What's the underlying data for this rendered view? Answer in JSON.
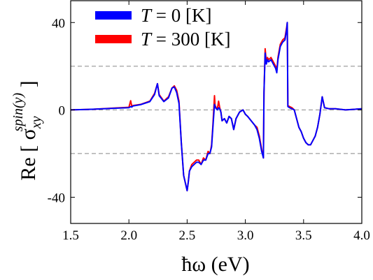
{
  "chart_data": {
    "type": "line",
    "xlabel": "ħω (eV)",
    "ylabel_base": "Re [ σ",
    "ylabel_sup": "spin(y)",
    "ylabel_sub": "xy",
    "ylabel_close": " ]",
    "xlim": [
      1.5,
      4.0
    ],
    "ylim": [
      -52,
      50
    ],
    "xticks": [
      1.5,
      2.0,
      2.5,
      3.0,
      3.5,
      4.0
    ],
    "xtick_labels": [
      "1.5",
      "2.0",
      "2.5",
      "3.0",
      "3.5",
      "4.0"
    ],
    "yticks": [
      -40,
      0,
      40
    ],
    "ytick_labels": [
      "-40",
      "0",
      "40"
    ],
    "reference_lines": [
      20,
      0,
      -20
    ],
    "legend_position": "top-left",
    "series": [
      {
        "name_var": "T",
        "name_rest": " = 300 [K]",
        "color": "#ff0000",
        "x": [
          1.5,
          1.7,
          1.9,
          2.0,
          2.015,
          2.025,
          2.035,
          2.1,
          2.18,
          2.22,
          2.245,
          2.26,
          2.3,
          2.34,
          2.37,
          2.39,
          2.41,
          2.43,
          2.45,
          2.47,
          2.5,
          2.51,
          2.52,
          2.54,
          2.56,
          2.58,
          2.6,
          2.62,
          2.64,
          2.66,
          2.68,
          2.695,
          2.7,
          2.71,
          2.72,
          2.735,
          2.74,
          2.75,
          2.76,
          2.77,
          2.78,
          2.79,
          2.8,
          2.82,
          2.84,
          2.86,
          2.88,
          2.9,
          2.92,
          2.95,
          2.98,
          3.0,
          3.02,
          3.05,
          3.08,
          3.1,
          3.12,
          3.14,
          3.155,
          3.16,
          3.17,
          3.18,
          3.19,
          3.2,
          3.22,
          3.24,
          3.26,
          3.27,
          3.28,
          3.3,
          3.32,
          3.34,
          3.355,
          3.36,
          3.365,
          3.38,
          3.4,
          3.42,
          3.44,
          3.46,
          3.48,
          3.5,
          3.52,
          3.54,
          3.56,
          3.58,
          3.6,
          3.62,
          3.64,
          3.66,
          3.68,
          3.72,
          3.78,
          3.86,
          4.0
        ],
        "y": [
          0,
          0.3,
          0.9,
          1.2,
          4.2,
          1.5,
          2,
          2.5,
          4,
          7.5,
          12,
          7,
          4,
          6,
          10,
          11,
          9,
          4,
          -15,
          -30,
          -37,
          -33,
          -28,
          -25,
          -24,
          -23,
          -23,
          -25,
          -22,
          -23,
          -19,
          -20,
          -19,
          -16,
          -8,
          6.5,
          2,
          1,
          0.5,
          4,
          1,
          -1,
          -5,
          -4,
          -6,
          -3,
          -4,
          -9,
          -4,
          -1,
          0,
          -2,
          -3,
          -5,
          -7,
          -8,
          -12,
          -18,
          -22,
          8,
          28,
          22,
          24,
          23,
          24,
          22,
          20,
          18,
          24,
          30,
          32,
          33,
          38,
          40,
          2,
          1.5,
          1,
          0,
          -4,
          -8,
          -10,
          -13,
          -15,
          -16,
          -16,
          -14,
          -12,
          -8,
          -2,
          6,
          1,
          0.5,
          0.5,
          0,
          0.5
        ]
      },
      {
        "name_var": "T",
        "name_rest": " = 0 [K]",
        "color": "#0000ff",
        "x": [
          1.5,
          1.7,
          1.9,
          2.0,
          2.015,
          2.025,
          2.035,
          2.1,
          2.18,
          2.22,
          2.245,
          2.26,
          2.3,
          2.34,
          2.37,
          2.39,
          2.41,
          2.43,
          2.45,
          2.47,
          2.5,
          2.51,
          2.52,
          2.54,
          2.56,
          2.58,
          2.6,
          2.62,
          2.64,
          2.66,
          2.68,
          2.695,
          2.7,
          2.71,
          2.72,
          2.735,
          2.74,
          2.75,
          2.76,
          2.77,
          2.78,
          2.79,
          2.8,
          2.82,
          2.84,
          2.86,
          2.88,
          2.9,
          2.92,
          2.95,
          2.98,
          3.0,
          3.02,
          3.05,
          3.08,
          3.1,
          3.12,
          3.14,
          3.155,
          3.16,
          3.17,
          3.18,
          3.19,
          3.2,
          3.22,
          3.24,
          3.26,
          3.27,
          3.28,
          3.3,
          3.32,
          3.34,
          3.355,
          3.36,
          3.365,
          3.38,
          3.4,
          3.42,
          3.44,
          3.46,
          3.48,
          3.5,
          3.52,
          3.54,
          3.56,
          3.58,
          3.6,
          3.62,
          3.64,
          3.66,
          3.68,
          3.72,
          3.78,
          3.86,
          4.0
        ],
        "y": [
          0,
          0.3,
          0.8,
          1.0,
          1.5,
          1.3,
          1.8,
          2.4,
          3.8,
          7,
          12,
          6.5,
          3.8,
          5.5,
          10,
          10.5,
          8,
          3,
          -15,
          -30,
          -37,
          -33,
          -28,
          -26,
          -25,
          -24,
          -24,
          -25,
          -23,
          -23,
          -20,
          -20,
          -19,
          -17,
          -9,
          2.5,
          1.5,
          0.5,
          0,
          1,
          0.5,
          -1,
          -5,
          -4,
          -6,
          -3,
          -4,
          -9,
          -4,
          -1,
          0,
          -2,
          -3,
          -5,
          -7,
          -9,
          -13,
          -19,
          -22,
          8,
          26,
          21,
          23,
          22,
          23,
          21,
          19,
          17,
          23,
          29,
          31,
          32,
          37,
          40,
          1.5,
          1,
          0.5,
          0,
          -4,
          -8,
          -10,
          -13,
          -15,
          -16,
          -16,
          -14,
          -12,
          -8,
          -2,
          6,
          1,
          0.5,
          0.5,
          0,
          0.5
        ]
      }
    ],
    "legend_order": [
      1,
      0
    ]
  }
}
